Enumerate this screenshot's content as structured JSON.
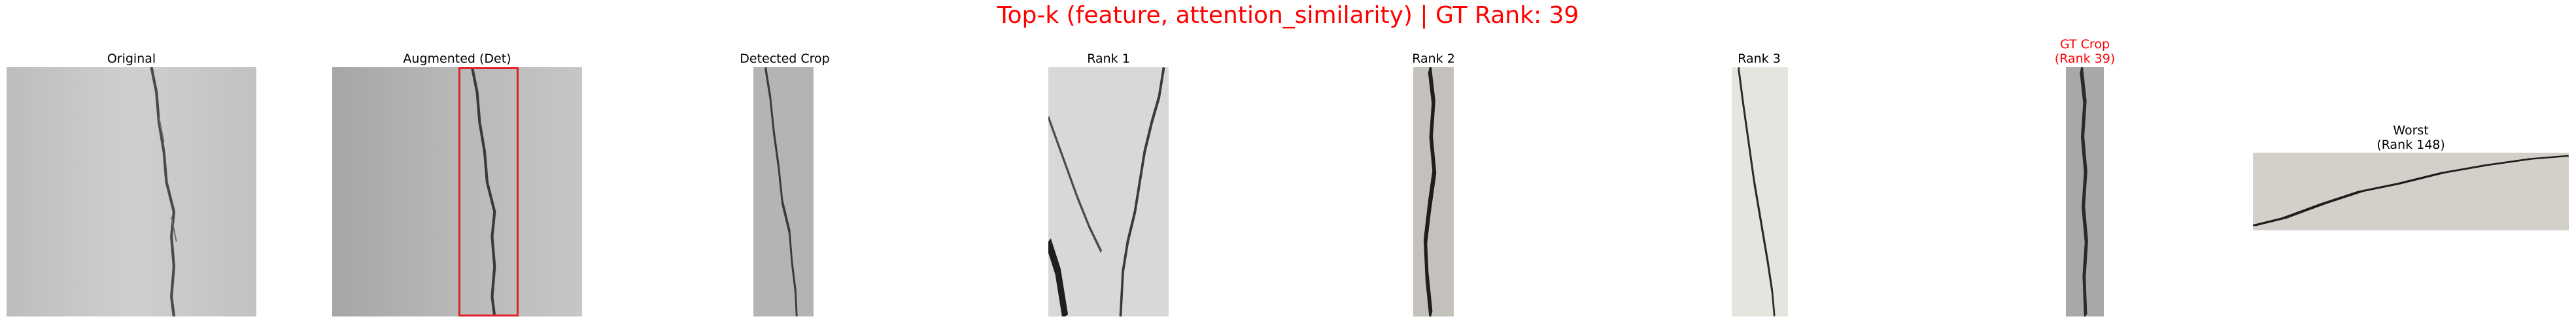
{
  "figure": {
    "title": "Top-k (feature, attention_similarity) | GT Rank: 39",
    "title_color": "#ff0000",
    "highlight_color": "#ff0000",
    "box_color": "#e0202a"
  },
  "panels": [
    {
      "id": "original",
      "label": "Original",
      "content": "concrete wall with vertical crack"
    },
    {
      "id": "augmented",
      "label": "Augmented (Det)",
      "content": "darker concrete wall with vertical crack and red detection box"
    },
    {
      "id": "detected",
      "label": "Detected Crop",
      "content": "narrow crop of crack"
    },
    {
      "id": "rank1",
      "label": "Rank 1",
      "content": "rough white wall with branching crack"
    },
    {
      "id": "rank2",
      "label": "Rank 2",
      "content": "narrow crop with dark crack"
    },
    {
      "id": "rank3",
      "label": "Rank 3",
      "content": "pale wall with thin dark crack"
    },
    {
      "id": "gt",
      "label": "GT Crop\n(Rank 39)",
      "content": "narrow crop with crack"
    },
    {
      "id": "worst",
      "label": "Worst\n(Rank 148)",
      "content": "wide weathered concrete with horizontal crack"
    }
  ]
}
